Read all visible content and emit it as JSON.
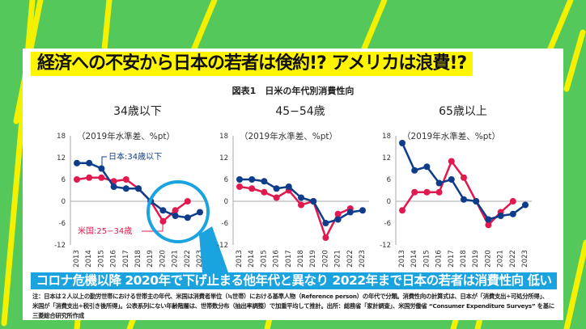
{
  "headline": "経済への不安から日本の若者は倹約!? アメリカは浪費!?",
  "figure_title": "図表1　日米の年代別消費性向",
  "caption": "コロナ危機以降 2020年で下げ止まる他年代と異なり 2022年まで日本の若者は消費性向 低い",
  "note_lines": [
    "注：日本は２人以上の勤労世帯における世帯主の年代、米国は消費者単位（≒世帯）における基準人物（Reference person）の年代で分類。消費性向の計算式は、日本が「消費支出÷可処分所得」、",
    "米国が「消費支出÷税引き後所得」。公表系列にない年齢階層は、世帯数分布（抽出率調整）で加重平均して推計。出所：総務省「家計調査」、米国労働省 “Consumer Expenditure Surveys” を基に三菱総合研究所作成"
  ],
  "colors": {
    "japan": "#0d3d8a",
    "us": "#e0194f",
    "background": "#55c85c",
    "stripe": "#f4f100",
    "caption": "#1ba3e0",
    "highlight": "#fff500"
  },
  "chart_data": [
    {
      "type": "line",
      "title": "34歳以下",
      "unit_label": "（2019年水準差、%pt）",
      "ylim": [
        -12,
        18
      ],
      "yticks": [
        18,
        12,
        6,
        0,
        -6,
        -12
      ],
      "categories": [
        "2013",
        "2014",
        "2015",
        "2016",
        "2017",
        "2018",
        "2019",
        "2020",
        "2021",
        "2022",
        "2023"
      ],
      "series": [
        {
          "name": "日本:34歳以下",
          "color": "#0d3d8a",
          "values": [
            10.5,
            10.5,
            9,
            4,
            3.5,
            3.5,
            0,
            -2.5,
            -4,
            -4.5,
            -3
          ]
        },
        {
          "name": "米国:25−34歳",
          "color": "#e0194f",
          "values": [
            6,
            6.5,
            6.5,
            5.5,
            6,
            3.5,
            0,
            -5.5,
            -2.5,
            0,
            null
          ]
        }
      ]
    },
    {
      "type": "line",
      "title": "45−54歳",
      "unit_label": "（2019年水準差、%pt）",
      "ylim": [
        -12,
        18
      ],
      "yticks": [
        18,
        12,
        6,
        0,
        -6,
        -12
      ],
      "categories": [
        "2013",
        "2014",
        "2015",
        "2016",
        "2017",
        "2018",
        "2019",
        "2020",
        "2021",
        "2022",
        "2023"
      ],
      "series": [
        {
          "color": "#0d3d8a",
          "values": [
            6,
            6,
            5.5,
            3.5,
            4,
            1,
            0,
            -6,
            -5,
            -3,
            -2.5
          ]
        },
        {
          "color": "#e0194f",
          "values": [
            4,
            3.5,
            2.5,
            1,
            3,
            -1,
            0,
            -10,
            -3.5,
            -2,
            null
          ]
        }
      ]
    },
    {
      "type": "line",
      "title": "65歳以上",
      "unit_label": "（2019年水準差、%pt）",
      "ylim": [
        -12,
        18
      ],
      "yticks": [
        18,
        12,
        6,
        0,
        -6,
        -12
      ],
      "categories": [
        "2013",
        "2014",
        "2015",
        "2016",
        "2017",
        "2018",
        "2019",
        "2020",
        "2021",
        "2022",
        "2023"
      ],
      "series": [
        {
          "color": "#0d3d8a",
          "values": [
            16,
            8.5,
            9.5,
            5,
            6,
            0.5,
            0,
            -5,
            -4,
            -3.5,
            -1
          ]
        },
        {
          "color": "#e0194f",
          "values": [
            -2.5,
            2.5,
            2.5,
            2.5,
            11,
            6.5,
            0,
            -6.5,
            -3,
            0,
            null
          ]
        }
      ]
    }
  ]
}
